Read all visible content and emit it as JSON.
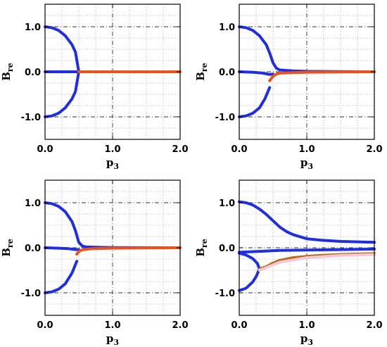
{
  "chart_data": [
    {
      "type": "line",
      "xlabel": "p",
      "xlabel_sub": "3",
      "ylabel": "B",
      "ylabel_sub": "re",
      "xlim": [
        0,
        2.0
      ],
      "ylim": [
        -1.5,
        1.5
      ],
      "xticks": [
        0.0,
        1.0,
        2.0
      ],
      "xtick_labels": [
        "0.0",
        "1.0",
        "2.0"
      ],
      "yticks": [
        -1.0,
        0.0,
        1.0
      ],
      "ytick_labels": [
        "-1.0",
        "0.0",
        "1.0"
      ],
      "grid": true,
      "series": [
        {
          "color": "#1f2fe0",
          "x": [
            0,
            0.1,
            0.2,
            0.3,
            0.4,
            0.45,
            0.5
          ],
          "y": [
            1.0,
            0.98,
            0.92,
            0.8,
            0.6,
            0.44,
            0.0
          ]
        },
        {
          "color": "#1f2fe0",
          "x": [
            0,
            0.1,
            0.2,
            0.3,
            0.4,
            0.45,
            0.5
          ],
          "y": [
            -1.0,
            -0.98,
            -0.92,
            -0.8,
            -0.6,
            -0.44,
            0.0
          ]
        },
        {
          "color": "#1f2fe0",
          "x": [
            0,
            0.5
          ],
          "y": [
            0.0,
            0.0
          ]
        },
        {
          "color": "#e8541e",
          "x": [
            0.5,
            2.0
          ],
          "y": [
            0.0,
            0.0
          ]
        }
      ]
    },
    {
      "type": "line",
      "xlabel": "p",
      "xlabel_sub": "3",
      "ylabel": "B",
      "ylabel_sub": "re",
      "xlim": [
        0,
        2.0
      ],
      "ylim": [
        -1.5,
        1.5
      ],
      "xticks": [
        0.0,
        1.0,
        2.0
      ],
      "xtick_labels": [
        "0.0",
        "1.0",
        "2.0"
      ],
      "yticks": [
        -1.0,
        0.0,
        1.0
      ],
      "ytick_labels": [
        "-1.0",
        "0.0",
        "1.0"
      ],
      "grid": true,
      "series": [
        {
          "color": "#1f2fe0",
          "x": [
            0,
            0.1,
            0.2,
            0.3,
            0.4,
            0.45,
            0.5,
            0.55,
            0.6,
            0.8,
            1.0,
            1.5,
            2.0
          ],
          "y": [
            1.0,
            0.98,
            0.92,
            0.8,
            0.6,
            0.42,
            0.2,
            0.08,
            0.04,
            0.02,
            0.01,
            0.005,
            0.0
          ]
        },
        {
          "color": "#1f2fe0",
          "x": [
            0,
            0.1,
            0.2,
            0.3,
            0.38,
            0.45
          ],
          "y": [
            -1.0,
            -0.98,
            -0.92,
            -0.8,
            -0.6,
            -0.35
          ]
        },
        {
          "color": "#1f2fe0",
          "x": [
            0,
            0.2,
            0.35,
            0.45,
            0.5
          ],
          "y": [
            0.0,
            -0.01,
            -0.03,
            -0.06,
            -0.05
          ]
        },
        {
          "color": "#e8541e",
          "x": [
            0.45,
            0.5,
            0.55,
            0.6,
            0.8,
            1.0,
            1.5,
            2.0
          ],
          "y": [
            -0.2,
            -0.1,
            -0.05,
            -0.03,
            -0.02,
            -0.01,
            -0.005,
            0.0
          ]
        }
      ]
    },
    {
      "type": "line",
      "xlabel": "p",
      "xlabel_sub": "3",
      "ylabel": "B",
      "ylabel_sub": "re",
      "xlim": [
        0,
        2.0
      ],
      "ylim": [
        -1.5,
        1.5
      ],
      "xticks": [
        0.0,
        1.0,
        2.0
      ],
      "xtick_labels": [
        "0.0",
        "1.0",
        "2.0"
      ],
      "yticks": [
        -1.0,
        0.0,
        1.0
      ],
      "ytick_labels": [
        "-1.0",
        "0.0",
        "1.0"
      ],
      "grid": true,
      "series": [
        {
          "color": "#1f2fe0",
          "x": [
            0,
            0.1,
            0.2,
            0.3,
            0.4,
            0.45,
            0.5,
            0.55,
            0.6,
            0.8,
            1.0,
            1.5,
            2.0
          ],
          "y": [
            1.0,
            0.98,
            0.92,
            0.8,
            0.58,
            0.38,
            0.12,
            0.04,
            0.02,
            0.01,
            0.005,
            0.002,
            0.0
          ]
        },
        {
          "color": "#1f2fe0",
          "x": [
            0,
            0.1,
            0.2,
            0.3,
            0.4,
            0.47
          ],
          "y": [
            -1.0,
            -0.98,
            -0.92,
            -0.8,
            -0.56,
            -0.3
          ]
        },
        {
          "color": "#1f2fe0",
          "x": [
            0,
            0.2,
            0.35,
            0.45,
            0.5
          ],
          "y": [
            0.0,
            -0.01,
            -0.02,
            -0.04,
            -0.04
          ]
        },
        {
          "color": "#e8541e",
          "x": [
            0.47,
            0.52,
            0.58,
            0.7,
            1.0,
            1.5,
            2.0
          ],
          "y": [
            -0.14,
            -0.06,
            -0.04,
            -0.02,
            -0.01,
            -0.005,
            0.0
          ]
        }
      ]
    },
    {
      "type": "line",
      "xlabel": "p",
      "xlabel_sub": "3",
      "ylabel": "B",
      "ylabel_sub": "re",
      "xlim": [
        0,
        2.0
      ],
      "ylim": [
        -1.5,
        1.5
      ],
      "xticks": [
        0.0,
        1.0,
        2.0
      ],
      "xtick_labels": [
        "0.0",
        "1.0",
        "2.0"
      ],
      "yticks": [
        -1.0,
        0.0,
        1.0
      ],
      "ytick_labels": [
        "-1.0",
        "0.0",
        "1.0"
      ],
      "grid": true,
      "series": [
        {
          "color": "#1f2fe0",
          "x": [
            0,
            0.1,
            0.2,
            0.3,
            0.4,
            0.5,
            0.6,
            0.7,
            0.8,
            1.0,
            1.2,
            1.5,
            2.0
          ],
          "y": [
            1.02,
            1.0,
            0.95,
            0.86,
            0.74,
            0.6,
            0.46,
            0.36,
            0.29,
            0.2,
            0.17,
            0.14,
            0.12
          ]
        },
        {
          "color": "#1f2fe0",
          "x": [
            0,
            0.1,
            0.2,
            0.25,
            0.3
          ],
          "y": [
            -0.95,
            -0.9,
            -0.76,
            -0.64,
            -0.47
          ]
        },
        {
          "color": "#1f2fe0",
          "x": [
            0,
            0.1,
            0.2,
            0.27,
            0.3
          ],
          "y": [
            -0.12,
            -0.16,
            -0.24,
            -0.35,
            -0.47
          ]
        },
        {
          "color": "#1f2fe0",
          "x": [
            0,
            0.3,
            0.6,
            1.0,
            1.5,
            2.0
          ],
          "y": [
            -0.1,
            -0.08,
            -0.06,
            -0.05,
            -0.04,
            -0.03
          ]
        },
        {
          "color": "#b56a1a",
          "x": [
            0.3,
            0.4,
            0.5,
            0.6,
            0.8,
            1.0,
            1.2,
            1.5,
            2.0
          ],
          "y": [
            -0.47,
            -0.42,
            -0.34,
            -0.28,
            -0.22,
            -0.19,
            -0.17,
            -0.15,
            -0.13
          ]
        },
        {
          "color": "#f3c7d3",
          "x": [
            0.3,
            0.6,
            1.0,
            1.5,
            2.0
          ],
          "y": [
            -0.5,
            -0.32,
            -0.22,
            -0.17,
            -0.15
          ]
        }
      ]
    }
  ]
}
